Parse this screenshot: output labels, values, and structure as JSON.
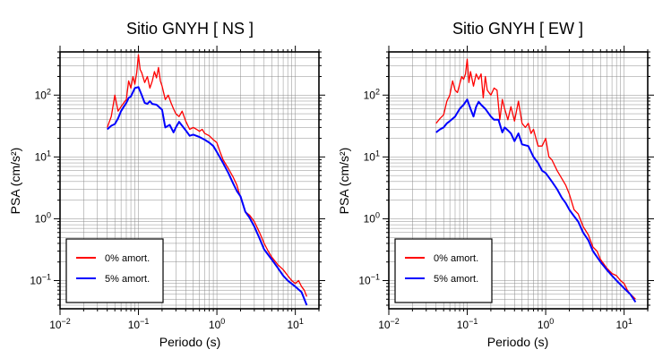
{
  "chart_data": [
    {
      "type": "line",
      "title": "Sitio GNYH [ NS ]",
      "xlabel": "Periodo (s)",
      "ylabel": "PSA (cm/s²)",
      "xscale": "log",
      "yscale": "log",
      "xlim": [
        0.01,
        20
      ],
      "ylim": [
        0.035,
        500
      ],
      "grid": true,
      "legend_position": "bottom-left",
      "xticks": [
        {
          "base": "10",
          "exp": "−2"
        },
        {
          "base": "10",
          "exp": "−1"
        },
        {
          "base": "10",
          "exp": "0"
        },
        {
          "base": "10",
          "exp": "1"
        }
      ],
      "yticks": [
        {
          "base": "10",
          "exp": "−1"
        },
        {
          "base": "10",
          "exp": "0"
        },
        {
          "base": "10",
          "exp": "1"
        },
        {
          "base": "10",
          "exp": "2"
        }
      ],
      "series": [
        {
          "name": "0% amort.",
          "color": "#ff0000",
          "x": [
            0.04,
            0.045,
            0.05,
            0.055,
            0.06,
            0.065,
            0.07,
            0.075,
            0.08,
            0.085,
            0.09,
            0.095,
            0.1,
            0.105,
            0.11,
            0.12,
            0.13,
            0.14,
            0.15,
            0.16,
            0.17,
            0.18,
            0.19,
            0.2,
            0.22,
            0.24,
            0.26,
            0.28,
            0.3,
            0.33,
            0.36,
            0.4,
            0.45,
            0.5,
            0.55,
            0.6,
            0.65,
            0.7,
            0.8,
            0.9,
            1.0,
            1.1,
            1.2,
            1.4,
            1.6,
            1.8,
            2.0,
            2.3,
            2.6,
            3.0,
            3.5,
            4.0,
            4.5,
            5.0,
            6.0,
            7.0,
            8.0,
            9.0,
            10.0,
            11.0,
            12.0,
            13.0,
            14.0
          ],
          "y": [
            30,
            45,
            100,
            55,
            65,
            75,
            85,
            170,
            130,
            200,
            150,
            230,
            450,
            260,
            230,
            160,
            200,
            130,
            170,
            240,
            190,
            280,
            170,
            140,
            85,
            100,
            75,
            60,
            50,
            45,
            55,
            38,
            28,
            30,
            28,
            26,
            28,
            24,
            22,
            19,
            17,
            12,
            9,
            6.5,
            4.8,
            3.5,
            2.2,
            1.3,
            1.15,
            0.9,
            0.6,
            0.4,
            0.3,
            0.24,
            0.18,
            0.15,
            0.12,
            0.1,
            0.09,
            0.1,
            0.08,
            0.07,
            0.055
          ]
        },
        {
          "name": "5% amort.",
          "color": "#0000ff",
          "x": [
            0.04,
            0.045,
            0.05,
            0.055,
            0.06,
            0.065,
            0.07,
            0.075,
            0.08,
            0.09,
            0.1,
            0.11,
            0.12,
            0.13,
            0.14,
            0.15,
            0.17,
            0.2,
            0.22,
            0.25,
            0.28,
            0.3,
            0.33,
            0.36,
            0.4,
            0.45,
            0.5,
            0.6,
            0.7,
            0.8,
            0.9,
            1.0,
            1.2,
            1.4,
            1.6,
            1.8,
            2.0,
            2.3,
            2.6,
            3.0,
            3.5,
            4.0,
            5.0,
            6.0,
            7.0,
            8.0,
            10.0,
            12.0,
            14.0
          ],
          "y": [
            28,
            32,
            34,
            42,
            55,
            65,
            75,
            90,
            95,
            130,
            135,
            100,
            75,
            72,
            80,
            72,
            70,
            58,
            30,
            33,
            25,
            30,
            37,
            32,
            27,
            22,
            23,
            21,
            19,
            17,
            15,
            12,
            8,
            5.5,
            3.8,
            2.8,
            2.3,
            1.3,
            1.05,
            0.75,
            0.48,
            0.32,
            0.22,
            0.16,
            0.12,
            0.1,
            0.08,
            0.065,
            0.04
          ]
        }
      ]
    },
    {
      "type": "line",
      "title": "Sitio GNYH [ EW ]",
      "xlabel": "Periodo (s)",
      "ylabel": "PSA (cm/s²)",
      "xscale": "log",
      "yscale": "log",
      "xlim": [
        0.01,
        20
      ],
      "ylim": [
        0.035,
        500
      ],
      "grid": true,
      "legend_position": "bottom-left",
      "xticks": [
        {
          "base": "10",
          "exp": "−2"
        },
        {
          "base": "10",
          "exp": "−1"
        },
        {
          "base": "10",
          "exp": "0"
        },
        {
          "base": "10",
          "exp": "1"
        }
      ],
      "yticks": [
        {
          "base": "10",
          "exp": "−1"
        },
        {
          "base": "10",
          "exp": "0"
        },
        {
          "base": "10",
          "exp": "1"
        },
        {
          "base": "10",
          "exp": "2"
        }
      ],
      "series": [
        {
          "name": "0% amort.",
          "color": "#ff0000",
          "x": [
            0.04,
            0.045,
            0.05,
            0.055,
            0.06,
            0.065,
            0.07,
            0.075,
            0.08,
            0.085,
            0.09,
            0.095,
            0.1,
            0.105,
            0.11,
            0.12,
            0.13,
            0.14,
            0.15,
            0.16,
            0.17,
            0.18,
            0.2,
            0.22,
            0.24,
            0.26,
            0.28,
            0.3,
            0.33,
            0.36,
            0.4,
            0.45,
            0.5,
            0.55,
            0.6,
            0.65,
            0.7,
            0.8,
            0.9,
            1.0,
            1.1,
            1.2,
            1.4,
            1.6,
            1.8,
            2.0,
            2.3,
            2.6,
            3.0,
            3.5,
            4.0,
            4.5,
            5.0,
            6.0,
            7.0,
            8.0,
            9.0,
            10.0,
            11.0,
            12.0,
            13.0,
            14.0
          ],
          "y": [
            35,
            42,
            48,
            80,
            100,
            170,
            120,
            110,
            150,
            200,
            180,
            220,
            380,
            160,
            240,
            140,
            220,
            180,
            220,
            90,
            200,
            120,
            100,
            130,
            120,
            40,
            85,
            60,
            40,
            65,
            38,
            80,
            35,
            30,
            35,
            24,
            28,
            15,
            15,
            20,
            10,
            9,
            6,
            4.5,
            3.5,
            2.5,
            1.4,
            1.2,
            0.75,
            0.55,
            0.35,
            0.3,
            0.22,
            0.16,
            0.13,
            0.12,
            0.1,
            0.09,
            0.07,
            0.06,
            0.055,
            0.05
          ]
        },
        {
          "name": "5% amort.",
          "color": "#0000ff",
          "x": [
            0.04,
            0.045,
            0.05,
            0.055,
            0.06,
            0.07,
            0.08,
            0.09,
            0.1,
            0.11,
            0.12,
            0.13,
            0.14,
            0.15,
            0.17,
            0.2,
            0.22,
            0.25,
            0.28,
            0.3,
            0.33,
            0.36,
            0.4,
            0.45,
            0.5,
            0.6,
            0.7,
            0.8,
            0.9,
            1.0,
            1.2,
            1.4,
            1.6,
            1.8,
            2.0,
            2.3,
            2.6,
            3.0,
            3.5,
            4.0,
            5.0,
            6.0,
            7.0,
            8.0,
            10.0,
            12.0,
            14.0
          ],
          "y": [
            25,
            28,
            30,
            35,
            38,
            45,
            60,
            70,
            85,
            60,
            45,
            65,
            78,
            70,
            60,
            45,
            40,
            40,
            25,
            30,
            27,
            24,
            18,
            24,
            16,
            15,
            10,
            8,
            6,
            5.5,
            4,
            3,
            2.2,
            1.8,
            1.4,
            1.1,
            0.9,
            0.6,
            0.45,
            0.3,
            0.2,
            0.15,
            0.12,
            0.1,
            0.075,
            0.06,
            0.045
          ]
        }
      ]
    }
  ]
}
